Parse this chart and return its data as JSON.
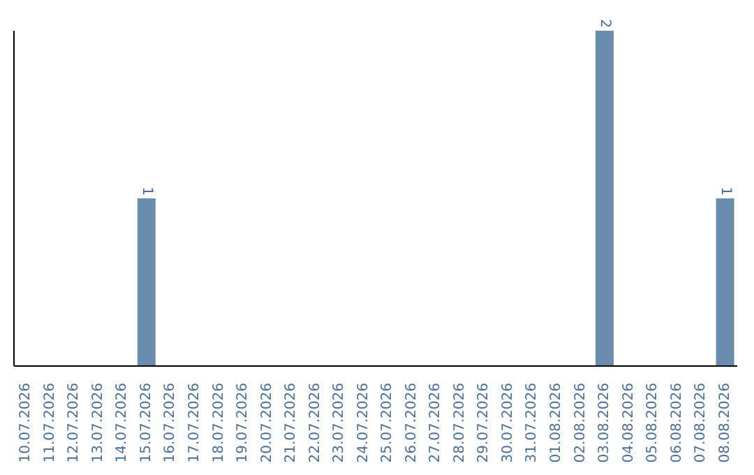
{
  "chart_data": {
    "type": "bar",
    "categories": [
      "10.07.2026",
      "11.07.2026",
      "12.07.2026",
      "13.07.2026",
      "14.07.2026",
      "15.07.2026",
      "16.07.2026",
      "17.07.2026",
      "18.07.2026",
      "19.07.2026",
      "20.07.2026",
      "21.07.2026",
      "22.07.2026",
      "23.07.2026",
      "24.07.2026",
      "25.07.2026",
      "26.07.2026",
      "27.07.2026",
      "28.07.2026",
      "29.07.2026",
      "30.07.2026",
      "31.07.2026",
      "01.08.2026",
      "02.08.2026",
      "03.08.2026",
      "04.08.2026",
      "05.08.2026",
      "06.08.2026",
      "07.08.2026",
      "08.08.2026"
    ],
    "values": [
      0,
      0,
      0,
      0,
      0,
      1,
      0,
      0,
      0,
      0,
      0,
      0,
      0,
      0,
      0,
      0,
      0,
      0,
      0,
      0,
      0,
      0,
      0,
      0,
      2,
      0,
      0,
      0,
      0,
      1
    ],
    "value_labels": [
      null,
      null,
      null,
      null,
      null,
      "1",
      null,
      null,
      null,
      null,
      null,
      null,
      null,
      null,
      null,
      null,
      null,
      null,
      null,
      null,
      null,
      null,
      null,
      null,
      "2",
      null,
      null,
      null,
      null,
      "1"
    ],
    "color": "#6a8caf",
    "grid": false,
    "legend": false,
    "tick_labels": "x"
  }
}
